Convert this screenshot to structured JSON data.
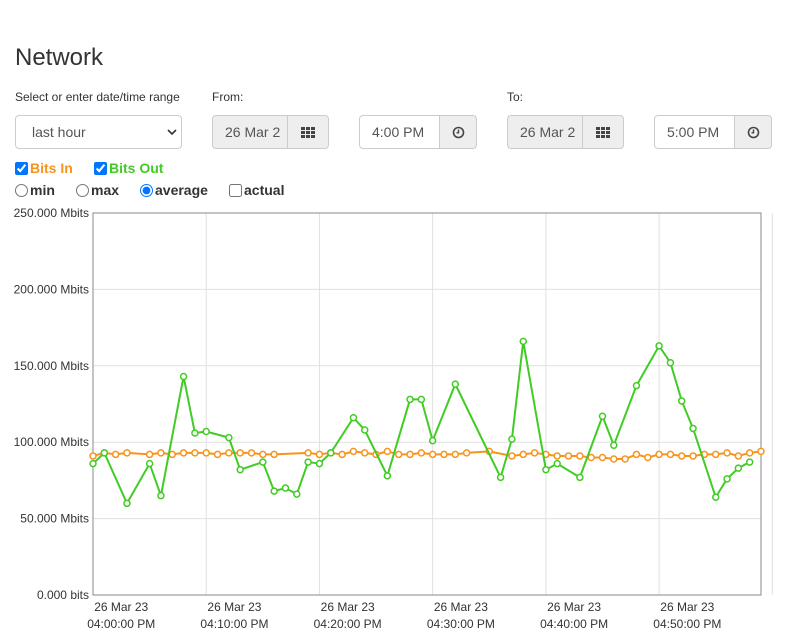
{
  "page": {
    "title": "Network"
  },
  "range": {
    "label": "Select or enter date/time range",
    "selected": "last hour"
  },
  "from": {
    "label": "From:",
    "date": "26 Mar 2",
    "time": "4:00 PM"
  },
  "to": {
    "label": "To:",
    "date": "26 Mar 2",
    "time": "5:00 PM"
  },
  "series_toggles": [
    {
      "label": "Bits In",
      "checked": true,
      "color": "#f7941d"
    },
    {
      "label": "Bits Out",
      "checked": true,
      "color": "#41cc25"
    }
  ],
  "modes": [
    {
      "label": "min",
      "type": "radio",
      "checked": false
    },
    {
      "label": "max",
      "type": "radio",
      "checked": false
    },
    {
      "label": "average",
      "type": "radio",
      "checked": true
    },
    {
      "label": "actual",
      "type": "checkbox",
      "checked": false
    }
  ],
  "icons": {
    "calendar": "calendar-grid-icon",
    "clock": "clock-icon",
    "dropdown": "chevron-down-icon"
  },
  "chart_data": {
    "type": "line",
    "title": "",
    "xlabel": "",
    "ylabel": "",
    "ylim": [
      0,
      250
    ],
    "y_unit": "Mbits",
    "x_range_minutes": [
      0,
      59
    ],
    "yticks": [
      {
        "value": 0,
        "label": "0.000 bits"
      },
      {
        "value": 50,
        "label": "50.000 Mbits"
      },
      {
        "value": 100,
        "label": "100.000 Mbits"
      },
      {
        "value": 150,
        "label": "150.000 Mbits"
      },
      {
        "value": 200,
        "label": "200.000 Mbits"
      },
      {
        "value": 250,
        "label": "250.000 Mbits"
      }
    ],
    "xticks": [
      {
        "minute": 10,
        "date": "26 Mar 23",
        "time": "04:00:00 PM"
      },
      {
        "minute": 20,
        "date": "26 Mar 23",
        "time": "04:10:00 PM"
      },
      {
        "minute": 30,
        "date": "26 Mar 23",
        "time": "04:20:00 PM"
      },
      {
        "minute": 40,
        "date": "26 Mar 23",
        "time": "04:30:00 PM"
      },
      {
        "minute": 50,
        "date": "26 Mar 23",
        "time": "04:40:00 PM"
      },
      {
        "minute": 60,
        "date": "26 Mar 23",
        "time": "04:50:00 PM"
      }
    ],
    "grid": true,
    "series": [
      {
        "name": "Bits In",
        "color": "#f7941d",
        "x": [
          0,
          1,
          2,
          3,
          5,
          6,
          7,
          8,
          9,
          10,
          11,
          12,
          13,
          14,
          15,
          16,
          19,
          20,
          21,
          22,
          23,
          24,
          25,
          26,
          27,
          28,
          29,
          30,
          31,
          32,
          33,
          35,
          37,
          38,
          39,
          40,
          41,
          42,
          43,
          44,
          45,
          46,
          47,
          48,
          49,
          50,
          51,
          52,
          53,
          54,
          55,
          56,
          57,
          58,
          59
        ],
        "values": [
          91,
          93,
          92,
          93,
          92,
          93,
          92,
          93,
          93,
          93,
          92,
          93,
          93,
          93,
          92,
          92,
          93,
          92,
          93,
          92,
          94,
          93,
          92,
          94,
          92,
          92,
          93,
          92,
          92,
          92,
          93,
          94,
          91,
          92,
          93,
          92,
          91,
          91,
          91,
          90,
          90,
          89,
          89,
          92,
          90,
          92,
          92,
          91,
          91,
          92,
          92,
          93,
          91,
          93,
          94
        ]
      },
      {
        "name": "Bits Out",
        "color": "#41cc25",
        "x": [
          0,
          1,
          3,
          5,
          6,
          8,
          9,
          10,
          12,
          13,
          15,
          16,
          17,
          18,
          19,
          20,
          21,
          23,
          24,
          26,
          28,
          29,
          30,
          32,
          36,
          37,
          38,
          40,
          41,
          43,
          45,
          46,
          48,
          50,
          51,
          52,
          53,
          55,
          56,
          57,
          58
        ],
        "values": [
          86,
          93,
          60,
          86,
          65,
          143,
          106,
          107,
          103,
          82,
          87,
          68,
          70,
          66,
          87,
          86,
          93,
          116,
          108,
          78,
          128,
          128,
          101,
          138,
          77,
          102,
          166,
          82,
          86,
          77,
          117,
          98,
          137,
          163,
          152,
          127,
          109,
          64,
          76,
          83,
          87
        ]
      }
    ]
  }
}
